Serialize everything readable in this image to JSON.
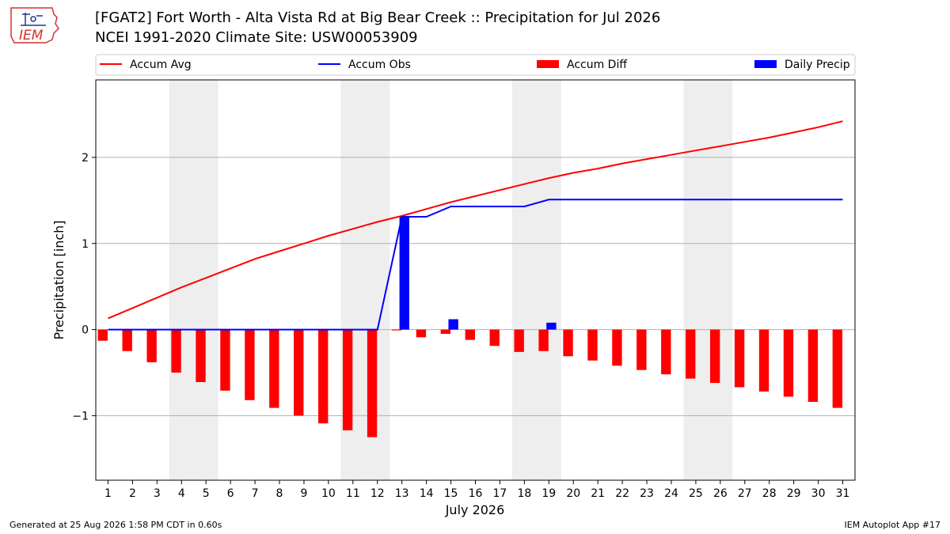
{
  "header": {
    "title_line_1": "[FGAT2] Fort Worth - Alta Vista Rd at Big Bear Creek :: Precipitation for Jul 2026",
    "title_line_2": "NCEI 1991-2020 Climate Site: USW00053909",
    "logo_text": "IEM"
  },
  "footer": {
    "generated": "Generated at 25 Aug 2026 1:58 PM CDT in 0.60s",
    "app": "IEM Autoplot App #17"
  },
  "colors": {
    "avg": "#ff0000",
    "obs": "#0000ff",
    "diff": "#ff0000",
    "daily": "#0000ff",
    "weekend_band": "#eeeeee",
    "grid": "#b0b0b0"
  },
  "chart_data": {
    "type": "bar",
    "xlabel": "July 2026",
    "ylabel": "Precipitation [inch]",
    "ylim": [
      -1.75,
      2.9
    ],
    "xlim": [
      0.5,
      31.5
    ],
    "grid": "horizontal",
    "legend_placement": "top",
    "yticks": [
      -1,
      0,
      1,
      2
    ],
    "ytick_labels": [
      "−1",
      "0",
      "1",
      "2"
    ],
    "x": [
      1,
      2,
      3,
      4,
      5,
      6,
      7,
      8,
      9,
      10,
      11,
      12,
      13,
      14,
      15,
      16,
      17,
      18,
      19,
      20,
      21,
      22,
      23,
      24,
      25,
      26,
      27,
      28,
      29,
      30,
      31
    ],
    "xtick_labels": [
      "1",
      "2",
      "3",
      "4",
      "5",
      "6",
      "7",
      "8",
      "9",
      "10",
      "11",
      "12",
      "13",
      "14",
      "15",
      "16",
      "17",
      "18",
      "19",
      "20",
      "21",
      "22",
      "23",
      "24",
      "25",
      "26",
      "27",
      "28",
      "29",
      "30",
      "31"
    ],
    "shaded_weekends": [
      [
        4,
        5
      ],
      [
        11,
        12
      ],
      [
        18,
        19
      ],
      [
        25,
        26
      ]
    ],
    "legend": [
      "Accum Avg",
      "Accum Obs",
      "Accum Diff",
      "Daily Precip"
    ],
    "series": [
      {
        "name": "Accum Avg",
        "kind": "line",
        "values": [
          0.13,
          0.25,
          0.37,
          0.49,
          0.6,
          0.71,
          0.82,
          0.91,
          1.0,
          1.09,
          1.17,
          1.25,
          1.32,
          1.4,
          1.48,
          1.55,
          1.62,
          1.69,
          1.76,
          1.82,
          1.87,
          1.93,
          1.98,
          2.03,
          2.08,
          2.13,
          2.18,
          2.23,
          2.29,
          2.35,
          2.42
        ]
      },
      {
        "name": "Accum Obs",
        "kind": "line",
        "values": [
          0,
          0,
          0,
          0,
          0,
          0,
          0,
          0,
          0,
          0,
          0,
          0,
          1.31,
          1.31,
          1.43,
          1.43,
          1.43,
          1.43,
          1.51,
          1.51,
          1.51,
          1.51,
          1.51,
          1.51,
          1.51,
          1.51,
          1.51,
          1.51,
          1.51,
          1.51,
          1.51
        ]
      },
      {
        "name": "Accum Diff",
        "kind": "bar",
        "values": [
          -0.13,
          -0.25,
          -0.38,
          -0.5,
          -0.61,
          -0.71,
          -0.82,
          -0.91,
          -1.0,
          -1.09,
          -1.17,
          -1.25,
          -0.01,
          -0.09,
          -0.05,
          -0.12,
          -0.19,
          -0.26,
          -0.25,
          -0.31,
          -0.36,
          -0.42,
          -0.47,
          -0.52,
          -0.57,
          -0.62,
          -0.67,
          -0.72,
          -0.78,
          -0.84,
          -0.91
        ]
      },
      {
        "name": "Daily Precip",
        "kind": "bar",
        "values": [
          0,
          0,
          0,
          0,
          0,
          0,
          0,
          0,
          0,
          0,
          0,
          0,
          1.31,
          0,
          0.12,
          0,
          0,
          0,
          0.08,
          0,
          0,
          0,
          0,
          0,
          0,
          0,
          0,
          0,
          0,
          0,
          0
        ]
      }
    ]
  }
}
